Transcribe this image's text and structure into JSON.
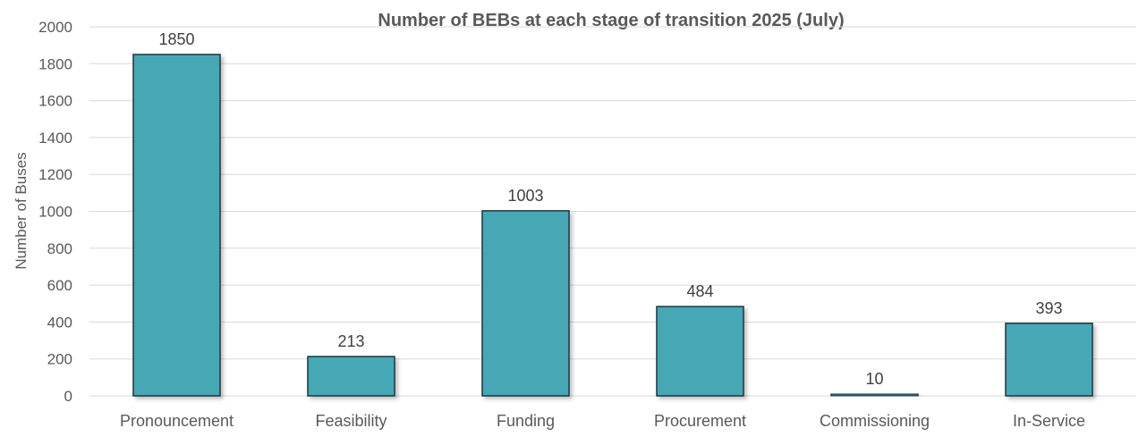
{
  "chart_data": {
    "type": "bar",
    "title": "Number of BEBs at each stage of transition 2025 (July)",
    "xlabel": "",
    "ylabel": "Number of Buses",
    "categories": [
      "Pronouncement",
      "Feasibility",
      "Funding",
      "Procurement",
      "Commissioning",
      "In-Service"
    ],
    "values": [
      1850,
      213,
      1003,
      484,
      10,
      393
    ],
    "data_labels": [
      "1850",
      "213",
      "1003",
      "484",
      "10",
      "393"
    ],
    "ylim": [
      0,
      2000
    ],
    "yticks": [
      "0",
      "200",
      "400",
      "600",
      "800",
      "1000",
      "1200",
      "1400",
      "1600",
      "1800",
      "2000"
    ],
    "grid": true,
    "legend": "none",
    "bar_color": "#47a8b5",
    "bar_edge_color": "#1d3540"
  }
}
